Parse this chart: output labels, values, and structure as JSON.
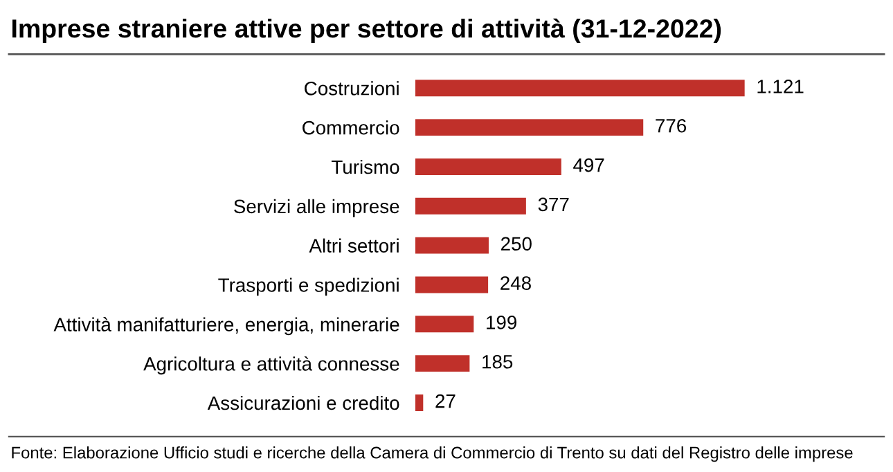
{
  "chart_data": {
    "type": "bar",
    "orientation": "horizontal",
    "title": "Imprese straniere attive per settore di attività (31-12-2022)",
    "categories": [
      "Costruzioni",
      "Commercio",
      "Turismo",
      "Servizi alle imprese",
      "Altri settori",
      "Trasporti e spedizioni",
      "Attività manifatturiere, energia, minerarie",
      "Agricoltura e attività connesse",
      "Assicurazioni e credito"
    ],
    "values": [
      1121,
      776,
      497,
      377,
      250,
      248,
      199,
      185,
      27
    ],
    "value_labels": [
      "1.121",
      "776",
      "497",
      "377",
      "250",
      "248",
      "199",
      "185",
      "27"
    ],
    "color": "#c0302a",
    "annotations": [
      "Fonte: Elaborazione Ufficio studi e ricerche della Camera di Commercio di Trento su dati del Registro delle imprese"
    ],
    "grid": false,
    "legend": false
  }
}
